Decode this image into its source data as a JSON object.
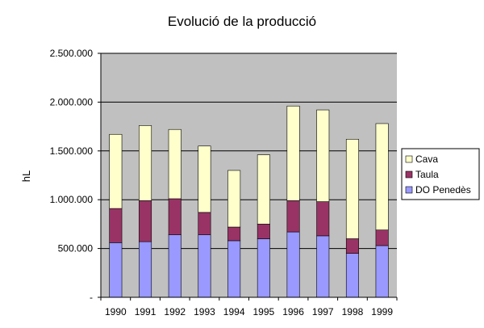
{
  "chart_data": {
    "type": "bar",
    "stacked": true,
    "title": "Evolució de la producció",
    "xlabel": "",
    "ylabel": "hL",
    "ylim": [
      0,
      2500000
    ],
    "yticks": [
      {
        "value": 0,
        "label": "-"
      },
      {
        "value": 500000,
        "label": "500.000"
      },
      {
        "value": 1000000,
        "label": "1.000.000"
      },
      {
        "value": 1500000,
        "label": "1.500.000"
      },
      {
        "value": 2000000,
        "label": "2.000.000"
      },
      {
        "value": 2500000,
        "label": "2.500.000"
      }
    ],
    "grid": true,
    "legend_position": "right",
    "categories": [
      "1990",
      "1991",
      "1992",
      "1993",
      "1994",
      "1995",
      "1996",
      "1997",
      "1998",
      "1999"
    ],
    "series": [
      {
        "name": "DO Penedès",
        "color": "#9999ff",
        "values": [
          560000,
          570000,
          640000,
          640000,
          580000,
          600000,
          670000,
          630000,
          450000,
          530000
        ]
      },
      {
        "name": "Taula",
        "color": "#993366",
        "values": [
          350000,
          420000,
          370000,
          230000,
          140000,
          150000,
          320000,
          350000,
          150000,
          160000
        ]
      },
      {
        "name": "Cava",
        "color": "#ffffcc",
        "values": [
          760000,
          770000,
          710000,
          680000,
          580000,
          710000,
          970000,
          940000,
          1020000,
          1090000
        ]
      }
    ]
  }
}
